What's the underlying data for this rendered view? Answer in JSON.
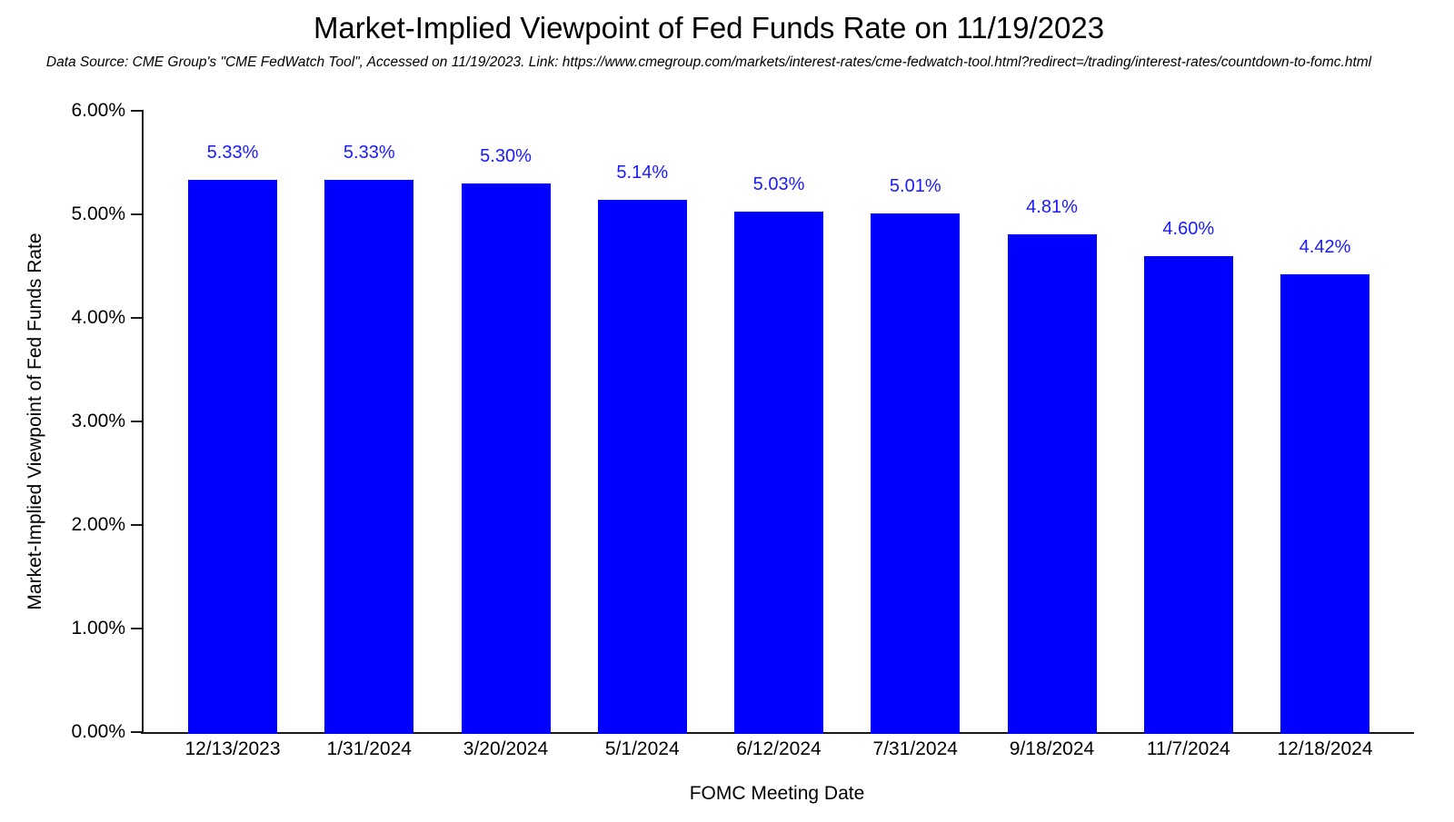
{
  "chart_data": {
    "type": "bar",
    "title": "Market-Implied Viewpoint of Fed Funds Rate on 11/19/2023",
    "subtitle": "Data Source: CME Group's \"CME FedWatch Tool\", Accessed on 11/19/2023. Link: https://www.cmegroup.com/markets/interest-rates/cme-fedwatch-tool.html?redirect=/trading/interest-rates/countdown-to-fomc.html",
    "xlabel": "FOMC Meeting Date",
    "ylabel": "Market-Implied Viewpoint of Fed Funds Rate",
    "categories": [
      "12/13/2023",
      "1/31/2024",
      "3/20/2024",
      "5/1/2024",
      "6/12/2024",
      "7/31/2024",
      "9/18/2024",
      "11/7/2024",
      "12/18/2024"
    ],
    "values": [
      5.33,
      5.33,
      5.3,
      5.14,
      5.03,
      5.01,
      4.81,
      4.6,
      4.42
    ],
    "data_labels": [
      "5.33%",
      "5.33%",
      "5.30%",
      "5.14%",
      "5.03%",
      "5.01%",
      "4.81%",
      "4.60%",
      "4.42%"
    ],
    "ylim": [
      0,
      6
    ],
    "ytick_interval": 1,
    "ytick_labels": [
      "0.00%",
      "1.00%",
      "2.00%",
      "3.00%",
      "4.00%",
      "5.00%",
      "6.00%"
    ],
    "bar_color": "#0000FF",
    "value_label_color": "#1A1AFF",
    "grid": false,
    "legend_position": "none"
  }
}
